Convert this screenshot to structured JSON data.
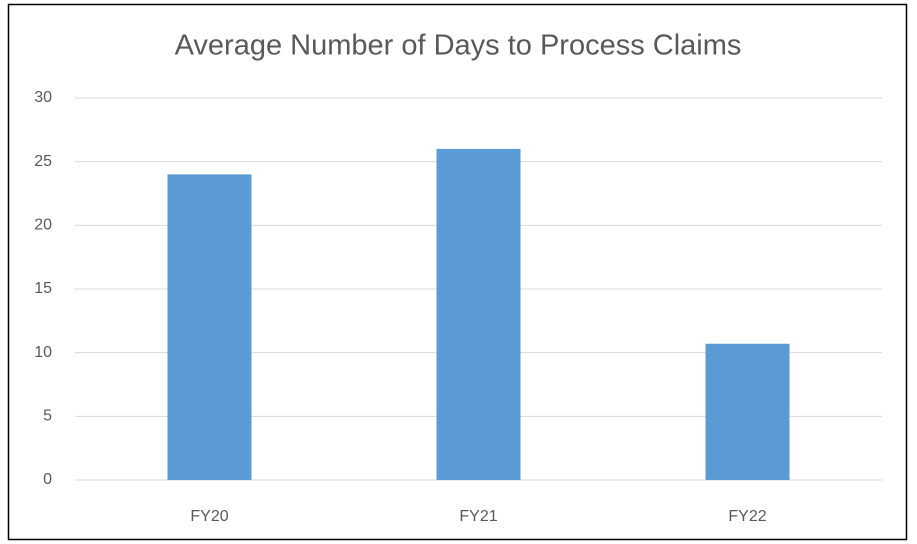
{
  "chart_data": {
    "type": "bar",
    "title": "Average Number of Days to Process Claims",
    "categories": [
      "FY20",
      "FY21",
      "FY22"
    ],
    "values": [
      24,
      26,
      10.7
    ],
    "color": "#5b9bd5",
    "ylim": [
      0,
      30
    ],
    "yticks": [
      0,
      5,
      10,
      15,
      20,
      25,
      30
    ],
    "grid": true
  }
}
